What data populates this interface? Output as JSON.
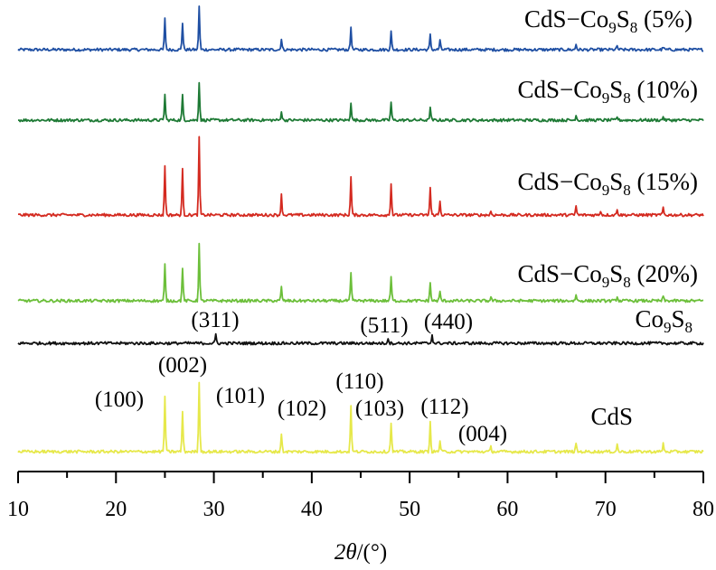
{
  "chart_data": {
    "type": "line",
    "xlabel_base": "2θ",
    "xlabel_unit": "/(°)",
    "xlim": [
      10,
      80
    ],
    "xticks": [
      "10",
      "20",
      "30",
      "40",
      "50",
      "60",
      "70",
      "80"
    ],
    "series": [
      {
        "name_parts": [
          "CdS−Co",
          "9",
          "S",
          "8",
          " (5%)"
        ],
        "color": "#1f4fa3",
        "peaks": [
          [
            25.0,
            34
          ],
          [
            26.8,
            30
          ],
          [
            28.5,
            48
          ],
          [
            36.9,
            12
          ],
          [
            44.0,
            25
          ],
          [
            48.1,
            20
          ],
          [
            52.1,
            16
          ],
          [
            53.1,
            10
          ],
          [
            67.0,
            6
          ],
          [
            71.2,
            4
          ],
          [
            75.9,
            3
          ]
        ]
      },
      {
        "name_parts": [
          "CdS−Co",
          "9",
          "S",
          "8",
          " (10%)"
        ],
        "color": "#1e7a35",
        "peaks": [
          [
            25.0,
            28
          ],
          [
            26.8,
            27
          ],
          [
            28.5,
            42
          ],
          [
            36.9,
            10
          ],
          [
            44.0,
            20
          ],
          [
            48.1,
            20
          ],
          [
            52.1,
            14
          ],
          [
            67.0,
            6
          ],
          [
            71.2,
            4
          ],
          [
            75.9,
            4
          ]
        ]
      },
      {
        "name_parts": [
          "CdS−Co",
          "9",
          "S",
          "8",
          " (15%)"
        ],
        "color": "#d42a20",
        "peaks": [
          [
            25.0,
            55
          ],
          [
            26.8,
            50
          ],
          [
            28.5,
            85
          ],
          [
            36.9,
            22
          ],
          [
            44.0,
            42
          ],
          [
            48.1,
            35
          ],
          [
            52.1,
            30
          ],
          [
            53.1,
            15
          ],
          [
            58.3,
            4
          ],
          [
            67.0,
            10
          ],
          [
            69.5,
            5
          ],
          [
            71.2,
            7
          ],
          [
            75.9,
            8
          ]
        ]
      },
      {
        "name_parts": [
          "CdS−Co",
          "9",
          "S",
          "8",
          " (20%)"
        ],
        "color": "#6cbf3a",
        "peaks": [
          [
            25.0,
            40
          ],
          [
            26.8,
            37
          ],
          [
            28.5,
            63
          ],
          [
            36.9,
            15
          ],
          [
            44.0,
            30
          ],
          [
            48.1,
            27
          ],
          [
            52.1,
            20
          ],
          [
            53.1,
            10
          ],
          [
            58.3,
            4
          ],
          [
            67.0,
            7
          ],
          [
            71.2,
            5
          ],
          [
            75.9,
            5
          ]
        ]
      },
      {
        "name_parts": [
          "Co",
          "9",
          "S",
          "8",
          ""
        ],
        "color": "#111111",
        "peaks": [
          [
            30.2,
            10
          ],
          [
            47.8,
            6
          ],
          [
            52.3,
            10
          ]
        ]
      },
      {
        "name_parts": [
          "CdS",
          "",
          "",
          "",
          ""
        ],
        "color": "#e6e84a",
        "peaks": [
          [
            25.0,
            62
          ],
          [
            26.8,
            45
          ],
          [
            28.5,
            78
          ],
          [
            36.9,
            20
          ],
          [
            44.0,
            52
          ],
          [
            48.1,
            33
          ],
          [
            52.1,
            32
          ],
          [
            53.1,
            12
          ],
          [
            58.3,
            5
          ],
          [
            67.0,
            9
          ],
          [
            71.2,
            8
          ],
          [
            75.9,
            9
          ]
        ]
      }
    ],
    "annotations": [
      {
        "text": "(311)",
        "x": 30.2
      },
      {
        "text": "(511)",
        "x": 47.8
      },
      {
        "text": "(440)",
        "x": 52.3
      },
      {
        "text": "(100)",
        "x": 25.0
      },
      {
        "text": "(002)",
        "x": 28.5
      },
      {
        "text": "(101)",
        "x": 28.5
      },
      {
        "text": "(110)",
        "x": 44.0
      },
      {
        "text": "(102)",
        "x": 36.9
      },
      {
        "text": "(103)",
        "x": 48.1
      },
      {
        "text": "(112)",
        "x": 52.1
      },
      {
        "text": "(004)",
        "x": 58.3
      }
    ]
  }
}
